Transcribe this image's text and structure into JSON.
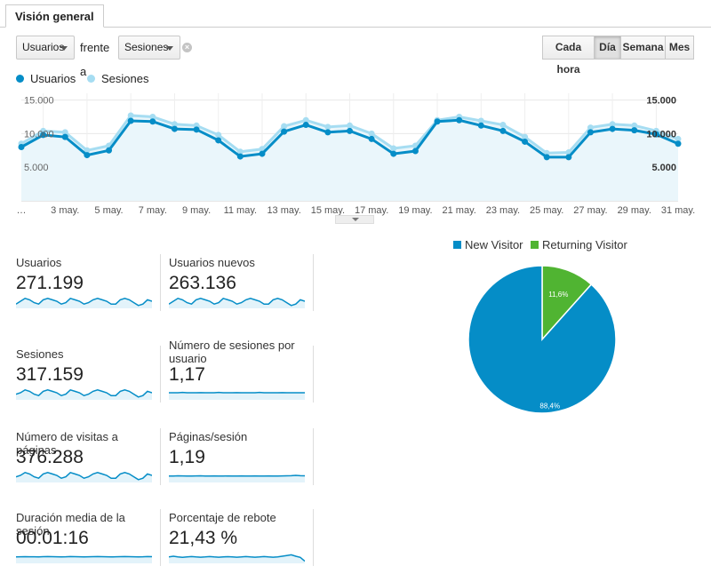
{
  "tab": {
    "label": "Visión general"
  },
  "toolbar": {
    "metric1": "Usuarios",
    "versus": "frente a",
    "metric2": "Sesiones",
    "clear": "×"
  },
  "granularity": [
    {
      "label": "Cada hora",
      "active": false
    },
    {
      "label": "Día",
      "active": true
    },
    {
      "label": "Semana",
      "active": false
    },
    {
      "label": "Mes",
      "active": false
    }
  ],
  "colors": {
    "usuarios": "#058dc7",
    "sesiones": "#a6ddf2",
    "new_visitor": "#058dc7",
    "returning_visitor": "#50b432"
  },
  "chart_data": [
    {
      "type": "line",
      "series": [
        {
          "name": "Usuarios",
          "values": [
            8000,
            9800,
            9500,
            6800,
            7500,
            11900,
            11800,
            10700,
            10600,
            9000,
            6600,
            7000,
            10300,
            11300,
            10200,
            10400,
            9200,
            7000,
            7400,
            11800,
            12000,
            11200,
            10400,
            8800,
            6500,
            6500,
            10200,
            10700,
            10500,
            9900,
            8500
          ]
        },
        {
          "name": "Sesiones",
          "values": [
            8500,
            10400,
            10200,
            7500,
            8200,
            12700,
            12500,
            11400,
            11200,
            9800,
            7300,
            7700,
            11100,
            12000,
            11000,
            11200,
            10000,
            7800,
            8200,
            12000,
            12500,
            11900,
            11300,
            9500,
            7100,
            7200,
            10900,
            11400,
            11200,
            10400,
            9200
          ]
        }
      ],
      "x_tick_labels": [
        "…",
        "3 may.",
        "5 may.",
        "7 may.",
        "9 may.",
        "11 may.",
        "13 may.",
        "15 may.",
        "17 may.",
        "19 may.",
        "21 may.",
        "23 may.",
        "25 may.",
        "27 may.",
        "29 may.",
        "31 may."
      ],
      "y_left_ticks": [
        "15.000",
        "10.000",
        "5.000"
      ],
      "y_right_ticks": [
        "15.000",
        "10.000",
        "5.000"
      ],
      "ylim": [
        0,
        16000
      ],
      "grid": true
    },
    {
      "type": "pie",
      "labels": [
        "New Visitor",
        "Returning Visitor"
      ],
      "values": [
        88.4,
        11.6
      ],
      "value_labels": [
        "88,4%",
        "11,6%"
      ],
      "legend_position": "top"
    }
  ],
  "metrics": [
    {
      "label": "Usuarios",
      "value": "271.199",
      "spark": [
        0.3,
        0.5,
        0.7,
        0.6,
        0.4,
        0.3,
        0.6,
        0.7,
        0.6,
        0.5,
        0.3,
        0.4,
        0.7,
        0.6,
        0.5,
        0.3,
        0.4,
        0.6,
        0.7,
        0.6,
        0.5,
        0.3,
        0.3,
        0.6,
        0.7,
        0.6,
        0.4,
        0.2,
        0.3,
        0.6,
        0.5
      ]
    },
    {
      "label": "Usuarios nuevos",
      "value": "263.136",
      "spark": [
        0.3,
        0.5,
        0.7,
        0.6,
        0.4,
        0.3,
        0.6,
        0.7,
        0.6,
        0.5,
        0.3,
        0.4,
        0.7,
        0.6,
        0.5,
        0.3,
        0.4,
        0.6,
        0.7,
        0.6,
        0.5,
        0.3,
        0.3,
        0.6,
        0.7,
        0.6,
        0.4,
        0.2,
        0.3,
        0.6,
        0.5
      ]
    },
    {
      "label": "Sesiones",
      "value": "317.159",
      "spark": [
        0.4,
        0.5,
        0.7,
        0.6,
        0.4,
        0.3,
        0.6,
        0.7,
        0.6,
        0.5,
        0.3,
        0.4,
        0.7,
        0.6,
        0.5,
        0.3,
        0.4,
        0.6,
        0.7,
        0.6,
        0.5,
        0.3,
        0.3,
        0.6,
        0.7,
        0.6,
        0.4,
        0.2,
        0.3,
        0.6,
        0.5
      ]
    },
    {
      "label": "Número de sesiones por usuario",
      "value": "1,17",
      "spark": [
        0.5,
        0.5,
        0.5,
        0.52,
        0.5,
        0.5,
        0.5,
        0.51,
        0.5,
        0.5,
        0.5,
        0.52,
        0.5,
        0.5,
        0.5,
        0.51,
        0.5,
        0.5,
        0.5,
        0.5,
        0.52,
        0.5,
        0.5,
        0.5,
        0.5,
        0.51,
        0.5,
        0.5,
        0.5,
        0.5,
        0.5
      ]
    },
    {
      "label": "Número de visitas a páginas",
      "value": "376.288",
      "spark": [
        0.4,
        0.5,
        0.7,
        0.6,
        0.4,
        0.3,
        0.6,
        0.7,
        0.6,
        0.5,
        0.3,
        0.4,
        0.7,
        0.6,
        0.5,
        0.3,
        0.4,
        0.6,
        0.7,
        0.6,
        0.5,
        0.3,
        0.3,
        0.6,
        0.7,
        0.6,
        0.4,
        0.2,
        0.3,
        0.6,
        0.5
      ]
    },
    {
      "label": "Páginas/sesión",
      "value": "1,19",
      "spark": [
        0.45,
        0.45,
        0.47,
        0.46,
        0.45,
        0.45,
        0.46,
        0.47,
        0.45,
        0.45,
        0.46,
        0.45,
        0.45,
        0.46,
        0.45,
        0.45,
        0.46,
        0.45,
        0.45,
        0.46,
        0.45,
        0.45,
        0.46,
        0.45,
        0.45,
        0.46,
        0.47,
        0.48,
        0.5,
        0.48,
        0.47
      ]
    },
    {
      "label": "Duración media de la sesión",
      "value": "00:01:16",
      "spark": [
        0.45,
        0.46,
        0.47,
        0.46,
        0.46,
        0.45,
        0.47,
        0.48,
        0.47,
        0.46,
        0.45,
        0.46,
        0.48,
        0.47,
        0.46,
        0.45,
        0.46,
        0.47,
        0.48,
        0.47,
        0.46,
        0.45,
        0.46,
        0.47,
        0.48,
        0.47,
        0.46,
        0.45,
        0.46,
        0.48,
        0.47
      ]
    },
    {
      "label": "Porcentaje de rebote",
      "value": "21,43 %",
      "spark": [
        0.45,
        0.5,
        0.45,
        0.42,
        0.45,
        0.48,
        0.45,
        0.43,
        0.45,
        0.48,
        0.45,
        0.43,
        0.45,
        0.47,
        0.45,
        0.43,
        0.45,
        0.48,
        0.45,
        0.43,
        0.45,
        0.48,
        0.45,
        0.43,
        0.45,
        0.5,
        0.55,
        0.6,
        0.5,
        0.42,
        0.15
      ]
    }
  ]
}
